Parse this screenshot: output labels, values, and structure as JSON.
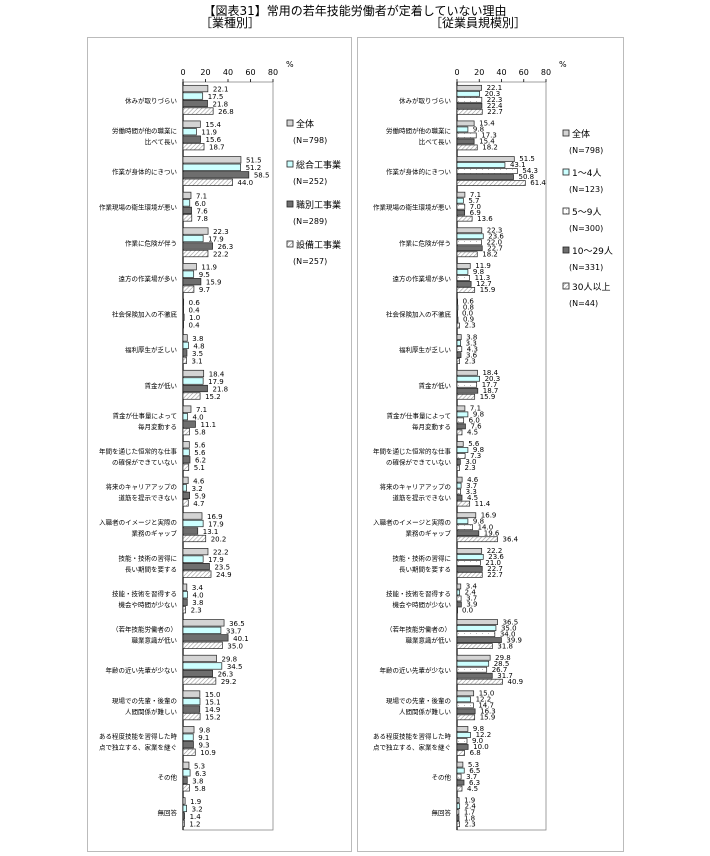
{
  "title": "【図表31】常用の若年技能労働者が定着していない理由",
  "chart_data": [
    {
      "type": "bar",
      "orientation": "horizontal",
      "subtitle": "［業種別］",
      "unit": "%",
      "xlim": [
        0,
        80
      ],
      "xticks": [
        "0",
        "20",
        "40",
        "60",
        "80"
      ],
      "legend_position": "right",
      "categories": [
        [
          "休みが取りづらい"
        ],
        [
          "労働時間が他の職業に",
          "比べて長い"
        ],
        [
          "作業が身体的にきつい"
        ],
        [
          "作業現場の衛生環境が悪い"
        ],
        [
          "作業に危険が伴う"
        ],
        [
          "遠方の作業場が多い"
        ],
        [
          "社会保険加入の不徹底"
        ],
        [
          "福利厚生が乏しい"
        ],
        [
          "賃金が低い"
        ],
        [
          "賃金が仕事量によって",
          "毎月変動する"
        ],
        [
          "年間を通じた恒常的な仕事",
          "の確保ができていない"
        ],
        [
          "将来のキャリアアップの",
          "道筋を提示できない"
        ],
        [
          "入職者のイメージと実際の",
          "業務のギャップ"
        ],
        [
          "技能・技術の習得に",
          "長い期間を要する"
        ],
        [
          "技能・技術を習得する",
          "機会や時間が少ない"
        ],
        [
          "（若年技能労働者の）",
          "職業意識が低い"
        ],
        [
          "年齢の近い先輩が少ない"
        ],
        [
          "現場での先輩・後輩の",
          "人間関係が難しい"
        ],
        [
          "ある程度技能を習得した時",
          "点で独立する、家業を継ぐ"
        ],
        [
          "その他"
        ],
        [
          "無回答"
        ]
      ],
      "series": [
        {
          "name": "全体",
          "n": "(N=798)",
          "fill": "#d4d4d4",
          "values": [
            22.1,
            15.4,
            51.5,
            7.1,
            22.3,
            11.9,
            0.6,
            3.8,
            18.4,
            7.1,
            5.6,
            4.6,
            16.9,
            22.2,
            3.4,
            36.5,
            29.8,
            15.0,
            9.8,
            5.3,
            1.9
          ]
        },
        {
          "name": "総合工事業",
          "n": "(N=252)",
          "fill": "#ccffff",
          "values": [
            17.5,
            11.9,
            51.2,
            6.0,
            17.9,
            9.5,
            0.4,
            4.8,
            17.9,
            4.0,
            5.6,
            3.2,
            17.9,
            17.9,
            4.0,
            33.7,
            34.5,
            15.1,
            9.1,
            6.3,
            3.2
          ]
        },
        {
          "name": "職別工事業",
          "n": "(N=289)",
          "fill": "#6e6e6e",
          "values": [
            21.8,
            15.6,
            58.5,
            7.6,
            26.3,
            15.9,
            1.0,
            3.5,
            21.8,
            11.1,
            6.2,
            5.9,
            13.1,
            23.5,
            3.8,
            40.1,
            26.3,
            14.9,
            9.3,
            3.8,
            1.4
          ]
        },
        {
          "name": "設備工事業",
          "n": "(N=257)",
          "fill": "hatch",
          "values": [
            26.8,
            18.7,
            44.0,
            7.8,
            22.2,
            9.7,
            0.4,
            3.1,
            15.2,
            5.8,
            5.1,
            4.7,
            20.2,
            24.9,
            2.3,
            35.0,
            29.2,
            15.2,
            10.9,
            5.8,
            1.2
          ]
        }
      ]
    },
    {
      "type": "bar",
      "orientation": "horizontal",
      "subtitle": "［従業員規模別］",
      "unit": "%",
      "xlim": [
        0,
        80
      ],
      "xticks": [
        "0",
        "20",
        "40",
        "60",
        "80"
      ],
      "legend_position": "right",
      "categories": [
        [
          "休みが取りづらい"
        ],
        [
          "労働時間が他の職業に",
          "比べて長い"
        ],
        [
          "作業が身体的にきつい"
        ],
        [
          "作業現場の衛生環境が悪い"
        ],
        [
          "作業に危険が伴う"
        ],
        [
          "遠方の作業場が多い"
        ],
        [
          "社会保険加入の不徹底"
        ],
        [
          "福利厚生が乏しい"
        ],
        [
          "賃金が低い"
        ],
        [
          "賃金が仕事量によって",
          "毎月変動する"
        ],
        [
          "年間を通じた恒常的な仕事",
          "の確保ができていない"
        ],
        [
          "将来のキャリアアップの",
          "道筋を提示できない"
        ],
        [
          "入職者のイメージと実際の",
          "業務のギャップ"
        ],
        [
          "技能・技術の習得に",
          "長い期間を要する"
        ],
        [
          "技能・技術を習得する",
          "機会や時間が少ない"
        ],
        [
          "（若年技能労働者の）",
          "職業意識が低い"
        ],
        [
          "年齢の近い先輩が少ない"
        ],
        [
          "現場での先輩・後輩の",
          "人間関係が難しい"
        ],
        [
          "ある程度技能を習得した時",
          "点で独立する、家業を継ぐ"
        ],
        [
          "その他"
        ],
        [
          "無回答"
        ]
      ],
      "series": [
        {
          "name": "全体",
          "n": "(N=798)",
          "fill": "#d4d4d4",
          "values": [
            22.1,
            15.4,
            51.5,
            7.1,
            22.3,
            11.9,
            0.6,
            3.8,
            18.4,
            7.1,
            5.6,
            4.6,
            16.9,
            22.2,
            3.4,
            36.5,
            29.8,
            15.0,
            9.8,
            5.3,
            1.9
          ]
        },
        {
          "name": "1～4人",
          "n": "(N=123)",
          "fill": "#ccffff",
          "values": [
            20.3,
            9.8,
            43.1,
            5.7,
            23.6,
            9.8,
            0.8,
            3.3,
            20.3,
            9.8,
            9.8,
            3.7,
            9.8,
            23.6,
            2.4,
            35.0,
            28.5,
            12.2,
            12.2,
            6.5,
            2.4
          ]
        },
        {
          "name": "5～9人",
          "n": "(N=300)",
          "fill": "dots",
          "values": [
            22.3,
            17.3,
            54.3,
            7.0,
            22.0,
            11.3,
            0.0,
            4.3,
            17.7,
            6.0,
            7.3,
            3.3,
            14.0,
            21.0,
            3.7,
            34.0,
            26.7,
            14.7,
            9.0,
            3.7,
            1.7
          ]
        },
        {
          "name": "10～29人",
          "n": "(N=331)",
          "fill": "#6e6e6e",
          "values": [
            22.4,
            15.4,
            50.8,
            6.9,
            22.7,
            12.7,
            0.9,
            3.6,
            18.7,
            7.6,
            3.0,
            4.5,
            19.6,
            22.7,
            3.9,
            39.9,
            31.7,
            16.3,
            10.0,
            6.3,
            1.8
          ]
        },
        {
          "name": "30人以上",
          "n": "(N=44)",
          "fill": "hatch",
          "values": [
            22.7,
            18.2,
            61.4,
            13.6,
            18.2,
            15.9,
            2.3,
            2.3,
            15.9,
            4.5,
            2.3,
            11.4,
            36.4,
            22.7,
            0.0,
            31.8,
            40.9,
            15.9,
            6.8,
            4.5,
            2.3
          ]
        }
      ]
    }
  ]
}
